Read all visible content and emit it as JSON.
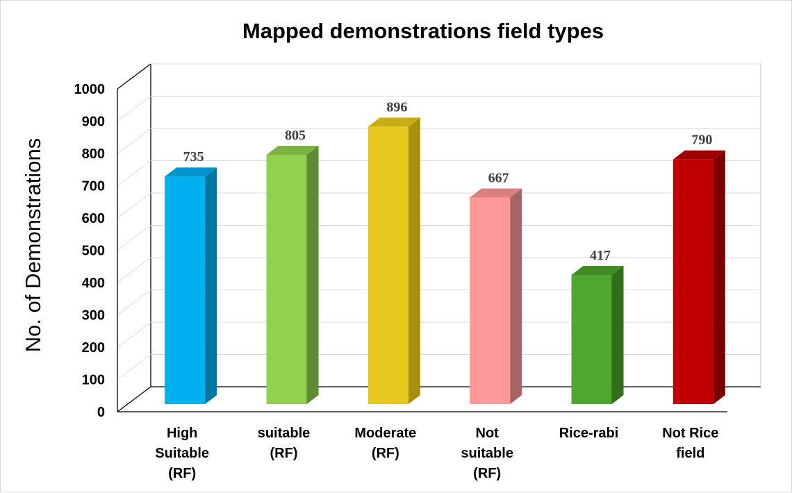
{
  "chart_data": {
    "type": "bar",
    "title": "Mapped demonstrations field types",
    "xlabel": "",
    "ylabel": "No. of Demonstrations",
    "ylim": [
      0,
      1000
    ],
    "yticks": [
      "0",
      "100",
      "200",
      "300",
      "400",
      "500",
      "600",
      "700",
      "800",
      "900",
      "1000"
    ],
    "grid": true,
    "legend": "none",
    "style": "3d-column",
    "categories": [
      [
        "High",
        "Suitable",
        "(RF)"
      ],
      [
        "suitable",
        "(RF)"
      ],
      [
        "Moderate",
        "(RF)"
      ],
      [
        "Not",
        "suitable",
        "(RF)"
      ],
      [
        "Rice-rabi"
      ],
      [
        "Not Rice",
        "field"
      ]
    ],
    "values": [
      735,
      805,
      896,
      667,
      417,
      790
    ],
    "data_labels": [
      "735",
      "805",
      "896",
      "667",
      "417",
      "790"
    ],
    "colors": [
      {
        "front": "#00b0f0",
        "side": "#0077a3",
        "top": "#0096cc"
      },
      {
        "front": "#92d050",
        "side": "#5e8a32",
        "top": "#7db246"
      },
      {
        "front": "#e6c81e",
        "side": "#a88f10",
        "top": "#c9ad16"
      },
      {
        "front": "#ff9999",
        "side": "#a86464",
        "top": "#d98080"
      },
      {
        "front": "#4ea72e",
        "side": "#2e6f1b",
        "top": "#3f8c25"
      },
      {
        "front": "#c00000",
        "side": "#7a0000",
        "top": "#9e0000"
      }
    ]
  }
}
